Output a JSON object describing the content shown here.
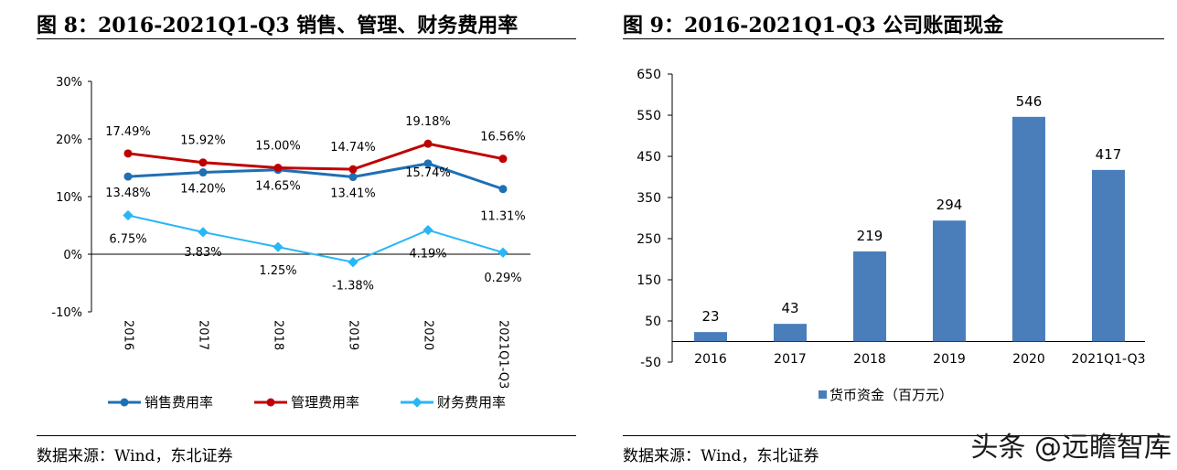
{
  "left": {
    "title": "图 8：2016-2021Q1-Q3 销售、管理、财务费用率",
    "source": "数据来源：Wind，东北证券",
    "chart_data": {
      "type": "line",
      "categories": [
        "2016",
        "2017",
        "2018",
        "2019",
        "2020",
        "2021Q1-Q3"
      ],
      "series": [
        {
          "name": "销售费用率",
          "color": "#1f6fb4",
          "values": [
            13.48,
            14.2,
            14.65,
            13.41,
            15.74,
            11.31
          ],
          "labels": [
            "13.48%",
            "14.20%",
            "14.65%",
            "13.41%",
            "15.74%",
            "11.31%"
          ]
        },
        {
          "name": "管理费用率",
          "color": "#c00000",
          "values": [
            17.49,
            15.92,
            15.0,
            14.74,
            19.18,
            16.56
          ],
          "labels": [
            "17.49%",
            "15.92%",
            "15.00%",
            "14.74%",
            "19.18%",
            "16.56%"
          ]
        },
        {
          "name": "财务费用率",
          "color": "#29b6f6",
          "values": [
            6.75,
            3.83,
            1.25,
            -1.38,
            4.19,
            0.29
          ],
          "labels": [
            "6.75%",
            "3.83%",
            "1.25%",
            "-1.38%",
            "4.19%",
            "0.29%"
          ]
        }
      ],
      "ylim": [
        -10,
        30
      ],
      "yticks": [
        30,
        20,
        10,
        0,
        -10
      ],
      "ytick_labels": [
        "30%",
        "20%",
        "10%",
        "0%",
        "-10%"
      ],
      "legend": "bottom"
    }
  },
  "right": {
    "title": "图 9：2016-2021Q1-Q3 公司账面现金",
    "source": "数据来源：Wind，东北证券",
    "chart_data": {
      "type": "bar",
      "categories": [
        "2016",
        "2017",
        "2018",
        "2019",
        "2020",
        "2021Q1-Q3"
      ],
      "series": [
        {
          "name": "货币资金（百万元）",
          "color": "#4a7ebb",
          "values": [
            23,
            43,
            219,
            294,
            546,
            417
          ]
        }
      ],
      "ylim": [
        -50,
        650
      ],
      "yticks": [
        650,
        550,
        450,
        350,
        250,
        150,
        50,
        -50
      ],
      "legend": "bottom"
    }
  },
  "watermark": "头条 @远瞻智库"
}
